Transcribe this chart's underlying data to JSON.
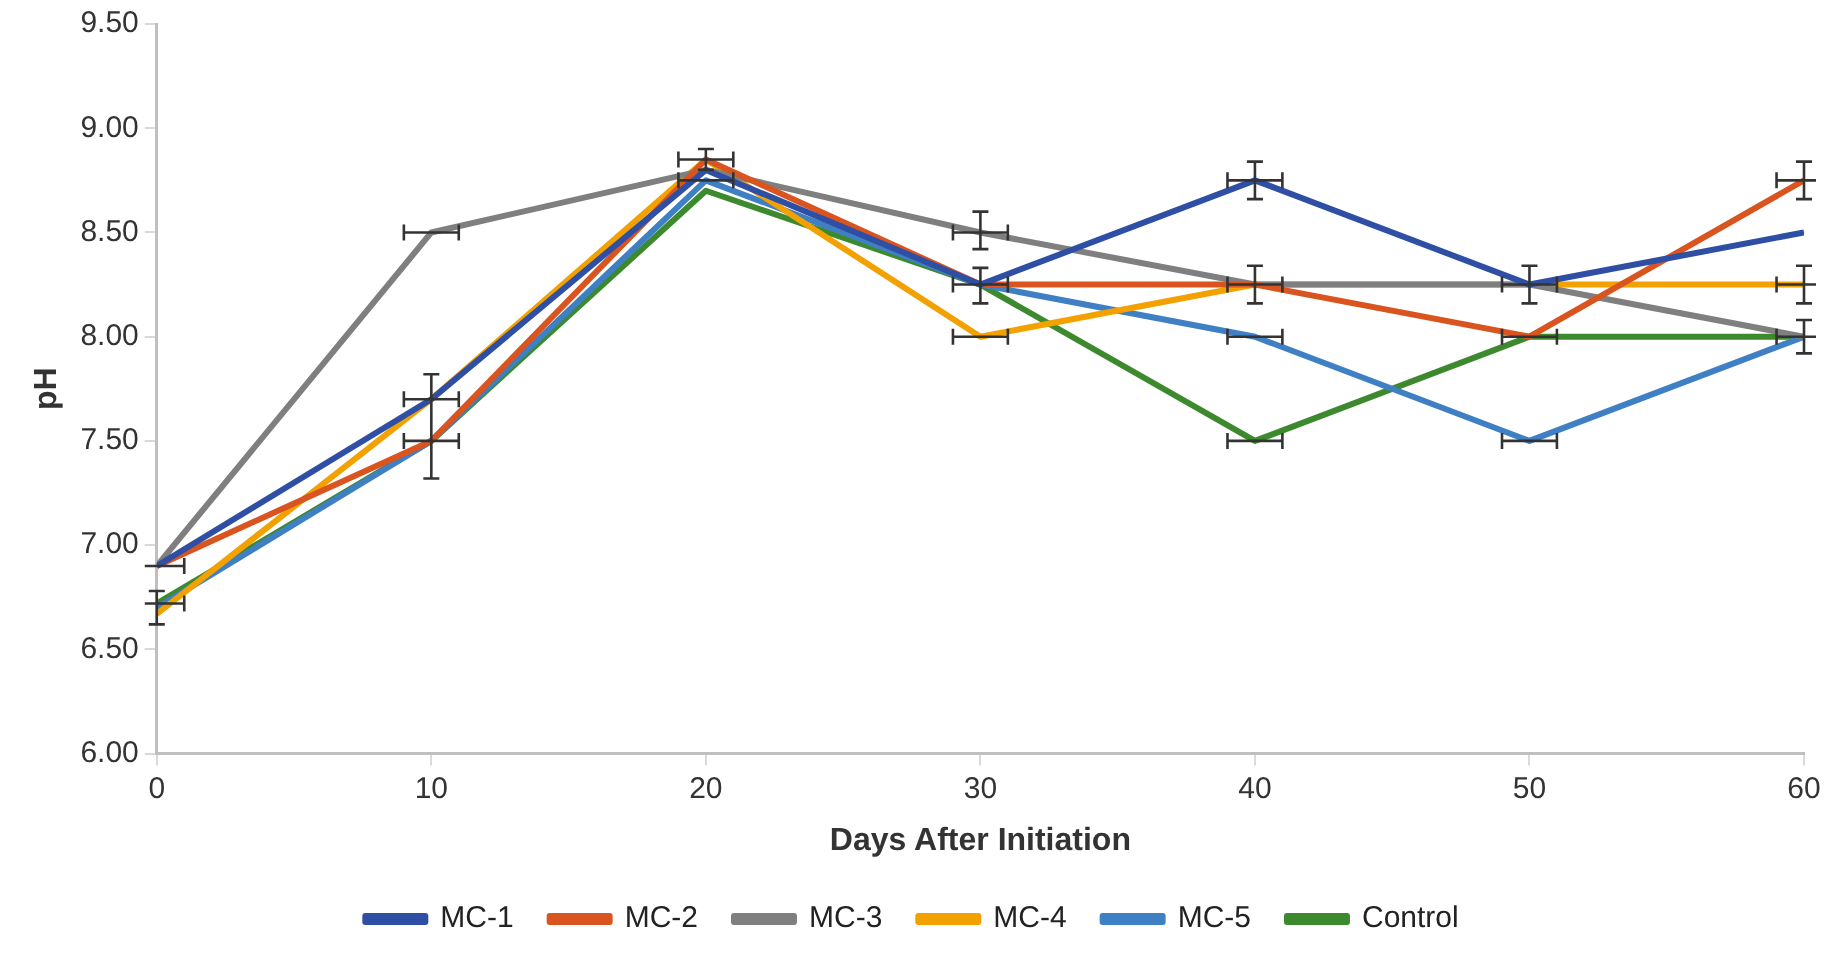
{
  "chart_data": {
    "type": "line",
    "xlabel": "Days After Initiation",
    "ylabel": "pH",
    "x": [
      0,
      10,
      20,
      30,
      40,
      50,
      60
    ],
    "xlim": [
      0,
      60
    ],
    "xticks": [
      0,
      10,
      20,
      30,
      40,
      50,
      60
    ],
    "ylim": [
      6,
      9.5
    ],
    "yticks": [
      {
        "value": 6,
        "label": "6.00"
      },
      {
        "value": 6.5,
        "label": "6.50"
      },
      {
        "value": 7,
        "label": "7.00"
      },
      {
        "value": 7.5,
        "label": "7.50"
      },
      {
        "value": 8,
        "label": "8.00"
      },
      {
        "value": 8.5,
        "label": "8.50"
      },
      {
        "value": 9,
        "label": "9.00"
      },
      {
        "value": 9.5,
        "label": "9.50"
      }
    ],
    "grid": false,
    "legend": "bottom",
    "marker": "none",
    "line_style": "solid",
    "series": [
      {
        "name": "MC-1",
        "color": "#2e4fa3",
        "values": [
          6.9,
          7.7,
          8.8,
          8.25,
          8.75,
          8.25,
          8.5
        ],
        "errors": [
          null,
          null,
          null,
          [
            8.16,
            8.33
          ],
          [
            8.66,
            8.84
          ],
          [
            8.16,
            8.34
          ],
          null
        ],
        "xerrors": [
          1,
          1,
          null,
          1,
          1,
          1,
          null
        ]
      },
      {
        "name": "MC-2",
        "color": "#d9541e",
        "values": [
          6.9,
          7.5,
          8.85,
          8.25,
          8.25,
          8.0,
          8.75
        ],
        "errors": [
          null,
          null,
          [
            8.8,
            8.9
          ],
          null,
          [
            8.16,
            8.34
          ],
          null,
          [
            8.66,
            8.84
          ]
        ],
        "xerrors": [
          null,
          null,
          1,
          null,
          1,
          1,
          1
        ]
      },
      {
        "name": "MC-3",
        "color": "#7f7f7f",
        "values": [
          6.9,
          8.5,
          8.8,
          8.5,
          8.25,
          8.25,
          8.0
        ],
        "errors": [
          null,
          null,
          null,
          [
            8.42,
            8.6
          ],
          null,
          null,
          null
        ],
        "xerrors": [
          null,
          1,
          null,
          1,
          null,
          null,
          null
        ]
      },
      {
        "name": "MC-4",
        "color": "#f2a100",
        "values": [
          6.67,
          7.7,
          8.85,
          8.0,
          8.25,
          8.25,
          8.25
        ],
        "errors": [
          null,
          null,
          null,
          null,
          null,
          null,
          [
            8.16,
            8.34
          ]
        ],
        "xerrors": [
          null,
          null,
          null,
          1,
          null,
          null,
          1
        ]
      },
      {
        "name": "MC-5",
        "color": "#3f7fc4",
        "values": [
          6.7,
          7.5,
          8.75,
          8.25,
          8.0,
          7.5,
          8.0
        ],
        "xerrors": [
          null,
          null,
          1,
          null,
          1,
          1,
          null
        ]
      },
      {
        "name": "Control",
        "color": "#3d8a2e",
        "values": [
          6.72,
          7.5,
          8.7,
          8.25,
          7.5,
          8.0,
          8.0
        ],
        "errors": [
          [
            6.62,
            6.78
          ],
          [
            7.32,
            7.82
          ],
          null,
          null,
          null,
          null,
          [
            7.92,
            8.08
          ]
        ],
        "xerrors": [
          1,
          1,
          null,
          null,
          1,
          null,
          1
        ]
      }
    ]
  }
}
